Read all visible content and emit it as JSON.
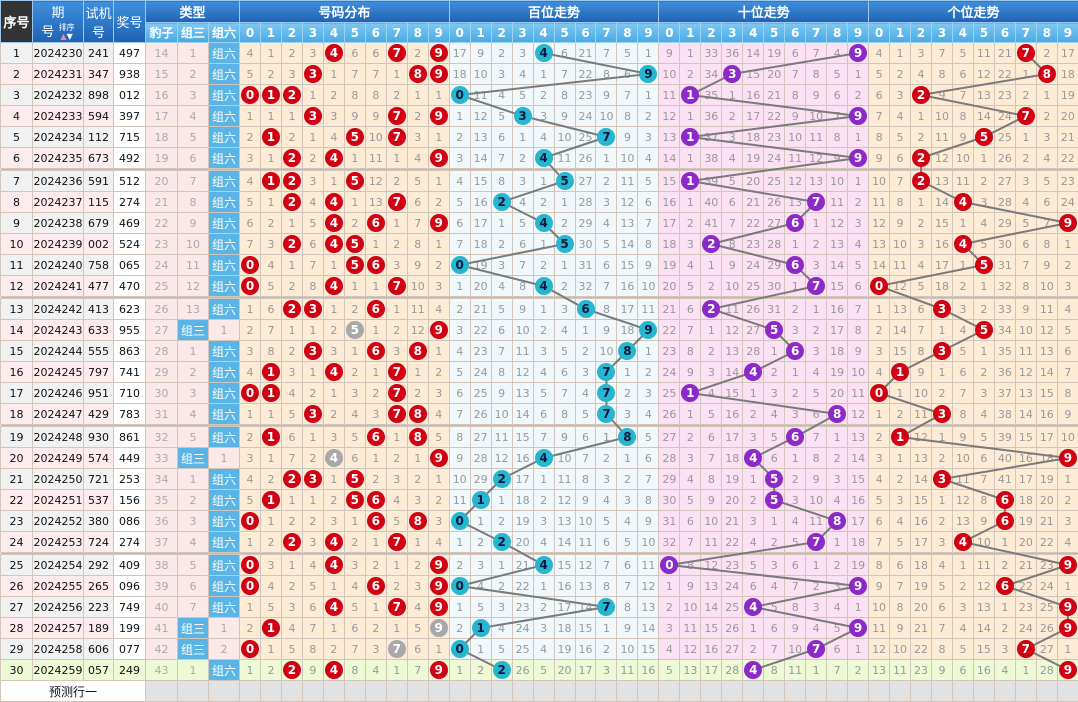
{
  "headers": {
    "seq": "序号",
    "issue_a": "期",
    "issue_b": "号",
    "sort": "排序",
    "test_a": "试机",
    "test_b": "号",
    "draw": "奖号",
    "type": "类型",
    "baozi": "豹子",
    "zusan": "组三",
    "zuliu": "组六",
    "dist": "号码分布",
    "hund": "百位走势",
    "tens": "十位走势",
    "unit": "个位走势",
    "digits": [
      "0",
      "1",
      "2",
      "3",
      "4",
      "5",
      "6",
      "7",
      "8",
      "9"
    ]
  },
  "rows": [
    {
      "seq": "1",
      "issue": "2024230",
      "test": "241",
      "draw": "497"
    },
    {
      "seq": "2",
      "issue": "2024231",
      "test": "347",
      "draw": "938"
    },
    {
      "seq": "3",
      "issue": "2024232",
      "test": "898",
      "draw": "012"
    },
    {
      "seq": "4",
      "issue": "2024233",
      "test": "594",
      "draw": "397"
    },
    {
      "seq": "5",
      "issue": "2024234",
      "test": "112",
      "draw": "715"
    },
    {
      "seq": "6",
      "issue": "2024235",
      "test": "673",
      "draw": "492"
    },
    {
      "seq": "7",
      "issue": "2024236",
      "test": "591",
      "draw": "512"
    },
    {
      "seq": "8",
      "issue": "2024237",
      "test": "115",
      "draw": "274"
    },
    {
      "seq": "9",
      "issue": "2024238",
      "test": "679",
      "draw": "469"
    },
    {
      "seq": "10",
      "issue": "2024239",
      "test": "002",
      "draw": "524"
    },
    {
      "seq": "11",
      "issue": "2024240",
      "test": "758",
      "draw": "065"
    },
    {
      "seq": "12",
      "issue": "2024241",
      "test": "477",
      "draw": "470"
    },
    {
      "seq": "13",
      "issue": "2024242",
      "test": "413",
      "draw": "623"
    },
    {
      "seq": "14",
      "issue": "2024243",
      "test": "633",
      "draw": "955"
    },
    {
      "seq": "15",
      "issue": "2024244",
      "test": "555",
      "draw": "863"
    },
    {
      "seq": "16",
      "issue": "2024245",
      "test": "797",
      "draw": "741"
    },
    {
      "seq": "17",
      "issue": "2024246",
      "test": "951",
      "draw": "710"
    },
    {
      "seq": "18",
      "issue": "2024247",
      "test": "429",
      "draw": "783"
    },
    {
      "seq": "19",
      "issue": "2024248",
      "test": "930",
      "draw": "861"
    },
    {
      "seq": "20",
      "issue": "2024249",
      "test": "574",
      "draw": "449"
    },
    {
      "seq": "21",
      "issue": "2024250",
      "test": "721",
      "draw": "253"
    },
    {
      "seq": "22",
      "issue": "2024251",
      "test": "537",
      "draw": "156"
    },
    {
      "seq": "23",
      "issue": "2024252",
      "test": "380",
      "draw": "086"
    },
    {
      "seq": "24",
      "issue": "2024253",
      "test": "724",
      "draw": "274"
    },
    {
      "seq": "25",
      "issue": "2024254",
      "test": "292",
      "draw": "409"
    },
    {
      "seq": "26",
      "issue": "2024255",
      "test": "265",
      "draw": "096"
    },
    {
      "seq": "27",
      "issue": "2024256",
      "test": "223",
      "draw": "749"
    },
    {
      "seq": "28",
      "issue": "2024257",
      "test": "189",
      "draw": "199"
    },
    {
      "seq": "29",
      "issue": "2024258",
      "test": "606",
      "draw": "077"
    },
    {
      "seq": "30",
      "issue": "2024259",
      "test": "057",
      "draw": "249"
    }
  ],
  "first_row_omissions": {
    "baozi": 14,
    "zusan": 1,
    "dist": [
      4,
      1,
      2,
      3,
      0,
      6,
      6,
      0,
      2,
      0
    ],
    "hund": [
      17,
      9,
      2,
      3,
      0,
      6,
      21,
      7,
      5,
      1
    ],
    "tens": [
      9,
      1,
      33,
      36,
      14,
      19,
      6,
      7,
      4,
      0
    ],
    "unit": [
      4,
      1,
      3,
      7,
      5,
      11,
      21,
      0,
      2,
      17
    ]
  },
  "footer": {
    "predict_label": "预测行一"
  },
  "colors": {
    "header": "#1f62b4",
    "subheader": "#4aa9e4",
    "ball_dist": "#d10012",
    "ball_dup": "#a8a8a8",
    "ball_hund": "#27b6cf",
    "ball_tens": "#8b2ac6",
    "ball_unit": "#d10012",
    "trend_line": "#7a7a7a"
  }
}
